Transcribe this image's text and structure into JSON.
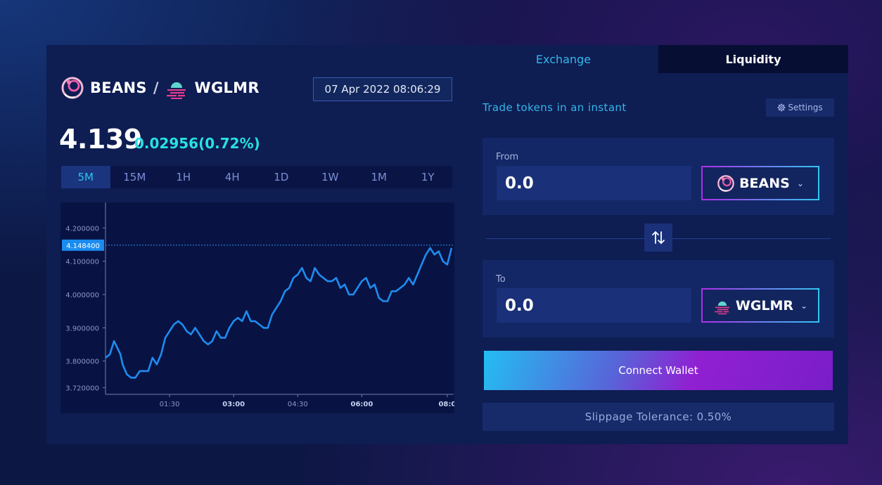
{
  "pair": {
    "base": "BEANS",
    "quote": "WGLMR",
    "separator": "/"
  },
  "timestamp": "07 Apr 2022 08:06:29",
  "price": "4.139",
  "change": "0.02956(0.72%)",
  "timeframes": [
    "5M",
    "15M",
    "1H",
    "4H",
    "1D",
    "1W",
    "1M",
    "1Y"
  ],
  "active_timeframe": "5M",
  "chart_data": {
    "type": "line",
    "ylim": [
      3.7,
      4.26
    ],
    "yticks": [
      "4.200000",
      "4.100000",
      "4.000000",
      "3.900000",
      "3.800000",
      "3.720000"
    ],
    "ytick_values": [
      4.2,
      4.1,
      4.0,
      3.9,
      3.8,
      3.72
    ],
    "xticks": [
      "01:30",
      "03:00",
      "04:30",
      "06:00",
      "08:0"
    ],
    "xtick_positions": [
      1.5,
      3.0,
      4.5,
      6.0,
      8.0
    ],
    "xlim": [
      0.0,
      8.15
    ],
    "current_value": 4.1484,
    "current_label": "4.148400",
    "series_color": "#1e8cf0",
    "x": [
      0.0,
      0.1,
      0.2,
      0.35,
      0.4,
      0.5,
      0.6,
      0.7,
      0.8,
      0.9,
      1.0,
      1.1,
      1.2,
      1.3,
      1.4,
      1.5,
      1.6,
      1.7,
      1.8,
      1.9,
      2.0,
      2.1,
      2.2,
      2.3,
      2.4,
      2.5,
      2.6,
      2.7,
      2.8,
      2.9,
      3.0,
      3.1,
      3.2,
      3.3,
      3.4,
      3.5,
      3.6,
      3.7,
      3.8,
      3.9,
      4.0,
      4.1,
      4.2,
      4.3,
      4.4,
      4.5,
      4.6,
      4.7,
      4.8,
      4.9,
      5.0,
      5.1,
      5.2,
      5.3,
      5.4,
      5.5,
      5.6,
      5.7,
      5.8,
      5.9,
      6.0,
      6.1,
      6.2,
      6.3,
      6.4,
      6.5,
      6.6,
      6.7,
      6.8,
      6.9,
      7.0,
      7.1,
      7.2,
      7.3,
      7.4,
      7.5,
      7.6,
      7.7,
      7.8,
      7.9,
      8.0,
      8.1
    ],
    "y": [
      3.81,
      3.82,
      3.86,
      3.82,
      3.79,
      3.76,
      3.75,
      3.75,
      3.77,
      3.77,
      3.77,
      3.81,
      3.79,
      3.82,
      3.87,
      3.89,
      3.91,
      3.92,
      3.91,
      3.89,
      3.88,
      3.9,
      3.88,
      3.86,
      3.85,
      3.86,
      3.89,
      3.87,
      3.87,
      3.9,
      3.92,
      3.93,
      3.92,
      3.95,
      3.92,
      3.92,
      3.91,
      3.9,
      3.9,
      3.94,
      3.96,
      3.98,
      4.01,
      4.02,
      4.05,
      4.06,
      4.08,
      4.05,
      4.04,
      4.08,
      4.06,
      4.05,
      4.04,
      4.04,
      4.05,
      4.02,
      4.03,
      4.0,
      4.0,
      4.02,
      4.04,
      4.05,
      4.02,
      4.03,
      3.99,
      3.98,
      3.98,
      4.01,
      4.01,
      4.02,
      4.03,
      4.05,
      4.03,
      4.06,
      4.09,
      4.12,
      4.14,
      4.12,
      4.13,
      4.1,
      4.09,
      4.14
    ]
  },
  "tabs": {
    "exchange": "Exchange",
    "liquidity": "Liquidity"
  },
  "trade_title": "Trade tokens in an instant",
  "settings_label": "Settings",
  "from": {
    "label": "From",
    "value": "0.0",
    "token": "BEANS"
  },
  "to": {
    "label": "To",
    "value": "0.0",
    "token": "WGLMR"
  },
  "connect_label": "Connect Wallet",
  "slippage": "Slippage Tolerance: 0.50%"
}
